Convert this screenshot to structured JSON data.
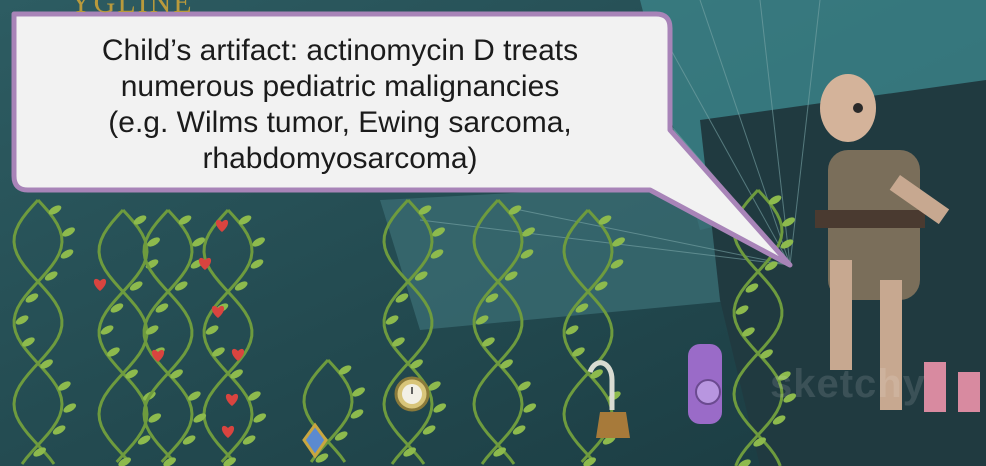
{
  "speech_bubble": {
    "lines": [
      "Child’s artifact: actinomycin D treats",
      "numerous pediatric malignancies",
      "(e.g. Wilms tumor, Ewing sarcoma,",
      "rhabdomyosarcoma)"
    ]
  },
  "watermark": {
    "text": "sketchy"
  },
  "corner_text": {
    "text": "YGLINE"
  },
  "colors": {
    "background": "#2a5a60",
    "vine": "#6e9b3e",
    "leaf": "#8dba4d",
    "heart": "#d9443f",
    "bubble_border": "#a884b8",
    "bubble_fill": "#f2f2f2"
  }
}
